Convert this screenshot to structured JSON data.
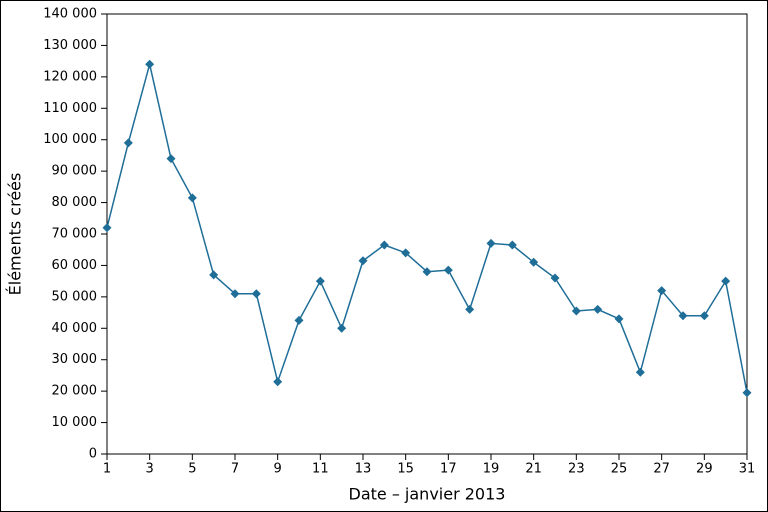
{
  "chart_data": {
    "type": "line",
    "xlabel": "Date – janvier 2013",
    "ylabel": "Éléments créés",
    "x": [
      1,
      2,
      3,
      4,
      5,
      6,
      7,
      8,
      9,
      10,
      11,
      12,
      13,
      14,
      15,
      16,
      17,
      18,
      19,
      20,
      21,
      22,
      23,
      24,
      25,
      26,
      27,
      28,
      29,
      30,
      31
    ],
    "values": [
      72000,
      99000,
      124000,
      94000,
      81500,
      57000,
      51000,
      51000,
      23000,
      42500,
      55000,
      40000,
      61500,
      66500,
      64000,
      58000,
      58500,
      46000,
      67000,
      66500,
      61000,
      56000,
      45500,
      46000,
      43000,
      26000,
      52000,
      44000,
      44000,
      55000,
      19500
    ],
    "color": "#1f6e98",
    "xlim": [
      1,
      31
    ],
    "xticks": [
      1,
      3,
      5,
      7,
      9,
      11,
      13,
      15,
      17,
      19,
      21,
      23,
      25,
      27,
      29,
      31
    ],
    "ylim": [
      0,
      140000
    ],
    "yticks": [
      0,
      {
        "value": 10000,
        "label": "10 000"
      },
      {
        "value": 20000,
        "label": "20 000"
      },
      {
        "value": 30000,
        "label": "30 000"
      },
      {
        "value": 40000,
        "label": "40 000"
      },
      {
        "value": 50000,
        "label": "50 000"
      },
      {
        "value": 60000,
        "label": "60 000"
      },
      {
        "value": 70000,
        "label": "70 000"
      },
      {
        "value": 80000,
        "label": "80 000"
      },
      {
        "value": 90000,
        "label": "90 000"
      },
      {
        "value": 100000,
        "label": "100 000"
      },
      {
        "value": 110000,
        "label": "110 000"
      },
      {
        "value": 120000,
        "label": "120 000"
      },
      {
        "value": 130000,
        "label": "130 000"
      },
      {
        "value": 140000,
        "label": "140 000"
      }
    ]
  }
}
